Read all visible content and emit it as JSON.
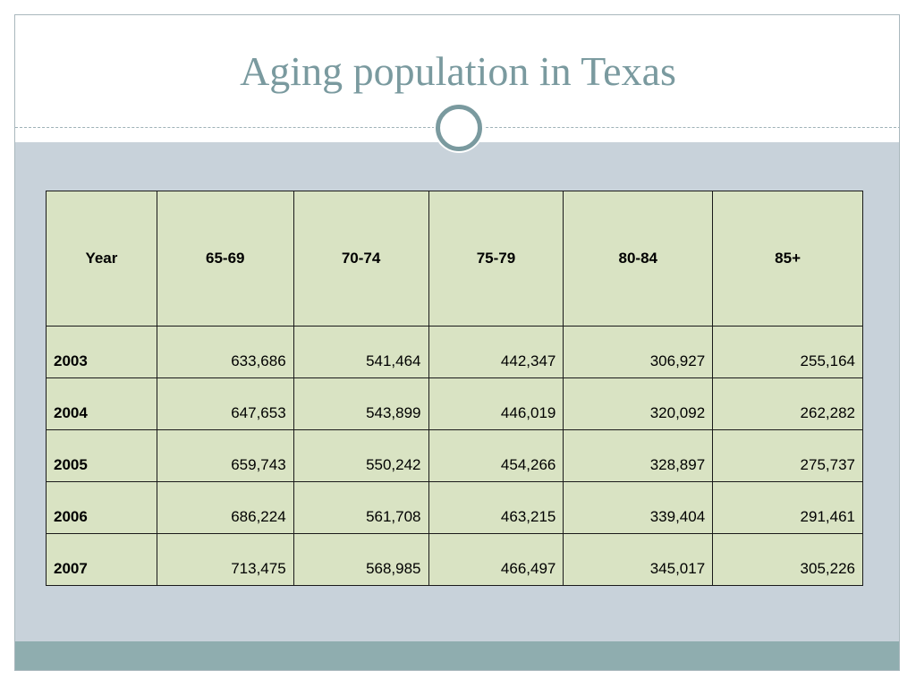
{
  "slide": {
    "title": "Aging population in Texas"
  },
  "table": {
    "headers": [
      "Year",
      "65-69",
      "70-74",
      "75-79",
      "80-84",
      "85+"
    ],
    "rows": [
      [
        "2003",
        "633,686",
        "541,464",
        "442,347",
        "306,927",
        "255,164"
      ],
      [
        "2004",
        "647,653",
        "543,899",
        "446,019",
        "320,092",
        "262,282"
      ],
      [
        "2005",
        "659,743",
        "550,242",
        "454,266",
        "328,897",
        "275,737"
      ],
      [
        "2006",
        "686,224",
        "561,708",
        "463,215",
        "339,404",
        "291,461"
      ],
      [
        "2007",
        "713,475",
        "568,985",
        "466,497",
        "345,017",
        "305,226"
      ]
    ]
  },
  "colors": {
    "title": "#7a9a9f",
    "band": "#c8d2da",
    "table_fill": "#d9e3c3",
    "footer": "#8fadaf"
  }
}
